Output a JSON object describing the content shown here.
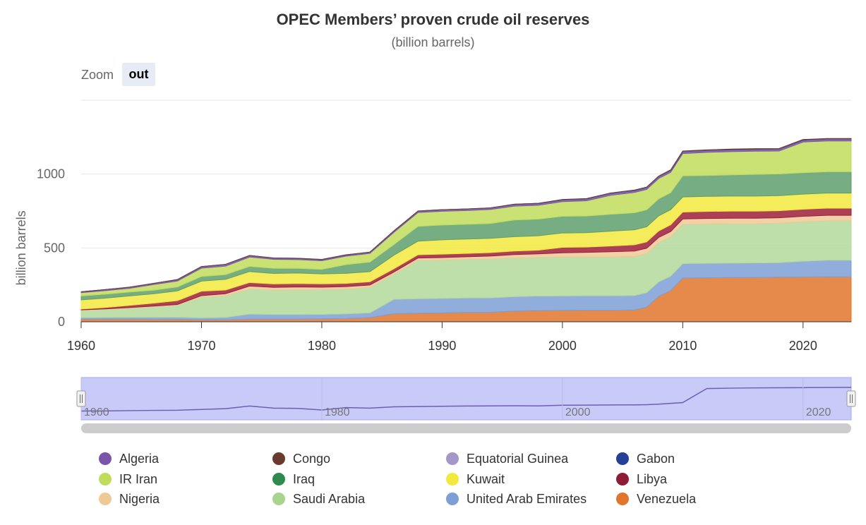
{
  "zoom": {
    "label": "Zoom",
    "out_label": "out"
  },
  "chart_data": {
    "type": "area",
    "stacked": true,
    "title": "OPEC Members’ proven crude oil reserves",
    "subtitle": "(billion barrels)",
    "ylabel": "billion barrels",
    "xlabel": "",
    "xlim": [
      1960,
      2024
    ],
    "ylim": [
      0,
      1500
    ],
    "x_ticks": [
      "1960",
      "1970",
      "1980",
      "1990",
      "2000",
      "2010",
      "2020"
    ],
    "y_ticks": [
      "0",
      "500",
      "1000"
    ],
    "grid": true,
    "legend_position": "bottom",
    "navigator": {
      "x_ticks": [
        "1960",
        "1980",
        "2000",
        "2020"
      ]
    },
    "x": [
      1960,
      1962,
      1964,
      1966,
      1968,
      1970,
      1972,
      1974,
      1976,
      1978,
      1980,
      1982,
      1984,
      1986,
      1988,
      1990,
      1992,
      1994,
      1996,
      1998,
      2000,
      2002,
      2004,
      2006,
      2007,
      2008,
      2009,
      2010,
      2012,
      2014,
      2016,
      2018,
      2020,
      2022,
      2024
    ],
    "series": [
      {
        "name": "Venezuela",
        "color": "#e0762c",
        "values": [
          18,
          18,
          18,
          17,
          16,
          14,
          14,
          18,
          18,
          18,
          20,
          22,
          28,
          55,
          58,
          60,
          63,
          64,
          72,
          76,
          77,
          78,
          78,
          80,
          99,
          172,
          211,
          296,
          298,
          299,
          300,
          302,
          303,
          304,
          304
        ]
      },
      {
        "name": "United Arab Emirates",
        "color": "#7d9fd6",
        "values": [
          10,
          11,
          12,
          14,
          15,
          13,
          16,
          34,
          31,
          31,
          30,
          32,
          32,
          97,
          98,
          98,
          98,
          98,
          98,
          98,
          98,
          98,
          98,
          98,
          98,
          98,
          98,
          98,
          98,
          98,
          98,
          98,
          107,
          113,
          113
        ]
      },
      {
        "name": "Saudi Arabia",
        "color": "#b3d99b",
        "values": [
          50,
          55,
          62,
          70,
          80,
          140,
          145,
          170,
          165,
          168,
          168,
          167,
          172,
          169,
          260,
          260,
          261,
          262,
          262,
          262,
          263,
          263,
          263,
          264,
          264,
          264,
          265,
          265,
          266,
          267,
          266,
          267,
          267,
          267,
          267
        ]
      },
      {
        "name": "Nigeria",
        "color": "#efc995",
        "values": [
          3,
          3,
          4,
          5,
          6,
          10,
          15,
          20,
          19,
          19,
          16,
          17,
          17,
          16,
          16,
          17,
          18,
          21,
          23,
          24,
          29,
          31,
          35,
          37,
          37,
          37,
          37,
          37,
          37,
          37,
          37,
          37,
          37,
          37,
          37
        ]
      },
      {
        "name": "Libya",
        "color": "#9e1f3a",
        "values": [
          5,
          10,
          15,
          20,
          26,
          30,
          25,
          24,
          23,
          23,
          23,
          22,
          22,
          22,
          22,
          23,
          23,
          23,
          24,
          25,
          37,
          36,
          39,
          42,
          43,
          44,
          46,
          47,
          48,
          48,
          48,
          48,
          48,
          48,
          48
        ]
      },
      {
        "name": "Kuwait",
        "color": "#f2e93e",
        "values": [
          62,
          63,
          64,
          63,
          66,
          68,
          72,
          74,
          71,
          71,
          67,
          68,
          68,
          92,
          92,
          97,
          97,
          97,
          97,
          97,
          97,
          97,
          100,
          102,
          102,
          102,
          102,
          102,
          102,
          102,
          102,
          102,
          102,
          102,
          102
        ]
      },
      {
        "name": "Iraq",
        "color": "#5e9f6c",
        "values": [
          27,
          27,
          26,
          25,
          27,
          32,
          32,
          35,
          35,
          32,
          31,
          59,
          65,
          72,
          100,
          100,
          100,
          100,
          113,
          113,
          113,
          113,
          115,
          115,
          115,
          115,
          115,
          143,
          141,
          143,
          147,
          147,
          145,
          145,
          145
        ]
      },
      {
        "name": "IR Iran",
        "color": "#c1dc5c",
        "values": [
          22,
          24,
          25,
          38,
          40,
          56,
          58,
          63,
          61,
          59,
          58,
          57,
          59,
          83,
          94,
          93,
          93,
          95,
          94,
          94,
          99,
          103,
          128,
          138,
          138,
          138,
          138,
          151,
          157,
          158,
          157,
          155,
          208,
          208,
          208
        ]
      },
      {
        "name": "Algeria",
        "color": "#7b54a9",
        "values": [
          6,
          7,
          8,
          8,
          9,
          10,
          11,
          10,
          8,
          8,
          8,
          8,
          8,
          9,
          9,
          10,
          10,
          10,
          11,
          11,
          11,
          11,
          12,
          12,
          12,
          12,
          12,
          12,
          12,
          12,
          12,
          12,
          12,
          12,
          12
        ]
      },
      {
        "name": "Gabon",
        "color": "#263f97",
        "values": [
          0,
          0,
          0,
          0,
          1,
          1,
          1,
          1,
          1,
          1,
          1,
          1,
          1,
          1,
          1,
          1,
          1,
          1,
          2,
          2,
          2,
          2,
          2,
          2,
          2,
          2,
          2,
          2,
          2,
          2,
          2,
          2,
          2,
          2,
          2
        ]
      },
      {
        "name": "Equatorial Guinea",
        "color": "#a697c9",
        "values": [
          0,
          0,
          0,
          0,
          0,
          0,
          0,
          0,
          0,
          0,
          0,
          0,
          0,
          0,
          0,
          0,
          0,
          0,
          0,
          0,
          1,
          1,
          1,
          1,
          1,
          1,
          1,
          1,
          1,
          1,
          1,
          1,
          1,
          1,
          1
        ]
      },
      {
        "name": "Congo",
        "color": "#6b3a2f",
        "values": [
          0,
          0,
          0,
          0,
          0,
          0,
          0,
          0,
          0,
          0,
          0,
          0,
          0,
          0,
          0,
          0,
          0,
          0,
          0,
          0,
          1,
          1,
          1,
          1,
          1,
          1,
          2,
          2,
          2,
          2,
          2,
          2,
          2,
          2,
          2
        ]
      }
    ],
    "legend": [
      {
        "name": "Algeria",
        "color": "#7b54a9"
      },
      {
        "name": "Congo",
        "color": "#6b3a2f"
      },
      {
        "name": "Equatorial Guinea",
        "color": "#a697c9"
      },
      {
        "name": "Gabon",
        "color": "#263f97"
      },
      {
        "name": "IR Iran",
        "color": "#c1dc5c"
      },
      {
        "name": "Iraq",
        "color": "#2f8a4d"
      },
      {
        "name": "Kuwait",
        "color": "#f2e93e"
      },
      {
        "name": "Libya",
        "color": "#8e1c36"
      },
      {
        "name": "Nigeria",
        "color": "#efc995"
      },
      {
        "name": "Saudi Arabia",
        "color": "#a9d48d"
      },
      {
        "name": "United Arab Emirates",
        "color": "#7d9fd6"
      },
      {
        "name": "Venezuela",
        "color": "#e0762c"
      }
    ],
    "navigator_values": [
      200,
      205,
      215,
      225,
      230,
      260,
      290,
      390,
      310,
      300,
      240,
      330,
      310,
      360,
      370,
      380,
      390,
      395,
      400,
      395,
      420,
      425,
      430,
      435,
      440,
      460,
      490,
      520,
      1050,
      1065,
      1075,
      1080,
      1085,
      1090,
      1095
    ]
  }
}
